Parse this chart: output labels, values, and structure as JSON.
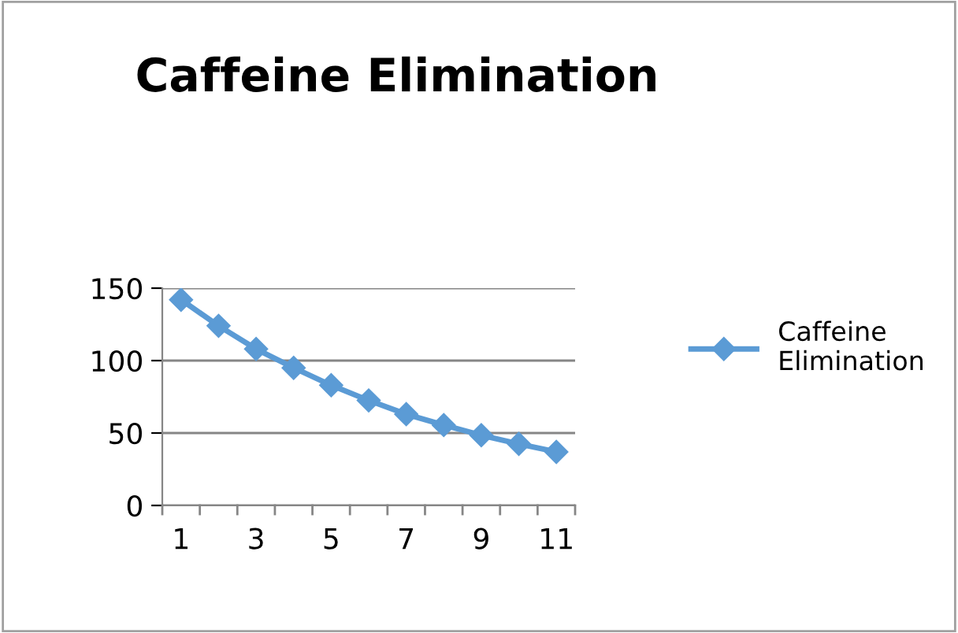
{
  "chart_data": {
    "type": "line",
    "title": "Caffeine Elimination",
    "categories": [
      "1",
      null,
      "3",
      null,
      "5",
      null,
      "7",
      null,
      "9",
      null,
      "11"
    ],
    "series": [
      {
        "name": "Caffeine Elimination",
        "color": "#5b9bd5",
        "values": [
          142,
          124,
          108,
          95,
          83,
          72.5,
          63,
          55.5,
          48.5,
          42.5,
          37
        ]
      }
    ],
    "ylim": [
      0,
      150
    ],
    "yticks": [
      0,
      50,
      100,
      150
    ],
    "grid": "y",
    "legend": "right",
    "marker": "diamond",
    "line_style": "solid"
  }
}
